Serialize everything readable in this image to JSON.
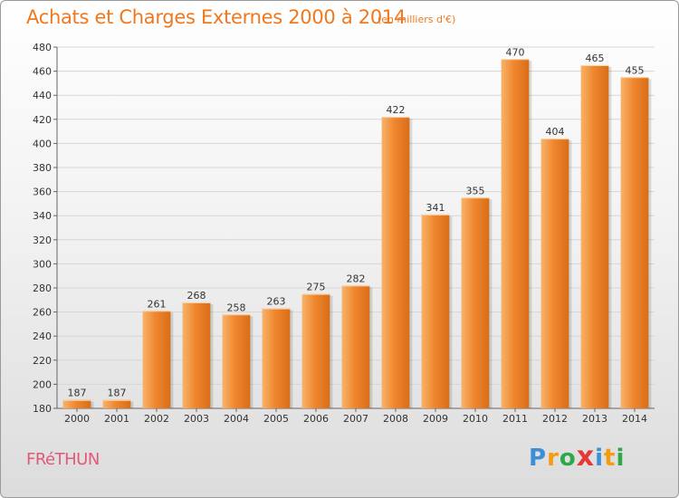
{
  "header": {
    "title": "Achats et Charges Externes 2000 à 2014",
    "unit_note": "(en milliers d'€)"
  },
  "footer": {
    "city": "FRéTHUN",
    "logo": [
      "P",
      "r",
      "o",
      "x",
      "i",
      "t",
      "i"
    ],
    "logo_colors": [
      "#3a8fd8",
      "#f39c12",
      "#2ea84a",
      "#e53935",
      "#3a8fd8",
      "#f39c12",
      "#2ea84a"
    ]
  },
  "chart_data": {
    "type": "bar",
    "title": "Achats et Charges Externes 2000 à 2014",
    "subtitle": "(en milliers d'€)",
    "categories": [
      "2000",
      "2001",
      "2002",
      "2003",
      "2004",
      "2005",
      "2006",
      "2007",
      "2008",
      "2009",
      "2010",
      "2011",
      "2012",
      "2013",
      "2014"
    ],
    "values": [
      187,
      187,
      261,
      268,
      258,
      263,
      275,
      282,
      422,
      341,
      355,
      470,
      404,
      465,
      455
    ],
    "ylim": [
      180,
      480
    ],
    "yticks": [
      180,
      200,
      220,
      240,
      260,
      280,
      300,
      320,
      340,
      360,
      380,
      400,
      420,
      440,
      460,
      480
    ],
    "grid": true,
    "bar_color": "#f0872e",
    "bar_color_light": "#f7b36a",
    "bar_color_dark": "#d96d18"
  }
}
